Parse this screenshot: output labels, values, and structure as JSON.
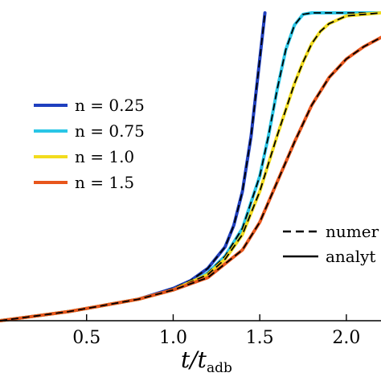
{
  "chart_data": {
    "type": "line",
    "xlabel_main": "t/t",
    "xlabel_sub": "adb",
    "xlim": [
      0.0,
      2.2
    ],
    "ylim": [
      0.0,
      1.0
    ],
    "x_ticks": [
      0.5,
      1.0,
      1.5,
      2.0
    ],
    "x_tick_labels": [
      "0.5",
      "1.0",
      "1.5",
      "2.0"
    ],
    "grid": false,
    "legend_position": "left",
    "series": [
      {
        "name": "n = 0.25",
        "color": "#1f3fbf",
        "x": [
          0.0,
          0.2,
          0.4,
          0.6,
          0.8,
          1.0,
          1.1,
          1.2,
          1.3,
          1.35,
          1.4,
          1.45,
          1.5,
          1.53
        ],
        "y": [
          0.0,
          0.015,
          0.03,
          0.05,
          0.07,
          0.105,
          0.13,
          0.17,
          0.24,
          0.31,
          0.42,
          0.6,
          0.85,
          1.0
        ]
      },
      {
        "name": "n = 0.75",
        "color": "#29c6e6",
        "x": [
          0.0,
          0.2,
          0.4,
          0.6,
          0.8,
          1.0,
          1.1,
          1.2,
          1.3,
          1.4,
          1.5,
          1.55,
          1.6,
          1.65,
          1.7,
          1.75,
          1.8,
          2.2
        ],
        "y": [
          0.0,
          0.015,
          0.03,
          0.05,
          0.07,
          0.1,
          0.12,
          0.155,
          0.21,
          0.3,
          0.47,
          0.6,
          0.75,
          0.88,
          0.96,
          0.995,
          1.0,
          1.0
        ]
      },
      {
        "name": "n = 1.0",
        "color": "#f2dc1e",
        "x": [
          0.0,
          0.2,
          0.4,
          0.6,
          0.8,
          1.0,
          1.2,
          1.3,
          1.4,
          1.5,
          1.6,
          1.7,
          1.75,
          1.8,
          1.85,
          1.9,
          2.0,
          2.2
        ],
        "y": [
          0.0,
          0.015,
          0.03,
          0.05,
          0.07,
          0.1,
          0.15,
          0.2,
          0.28,
          0.42,
          0.6,
          0.77,
          0.84,
          0.9,
          0.94,
          0.965,
          0.99,
          1.0
        ]
      },
      {
        "name": "n = 1.5",
        "color": "#e8561c",
        "x": [
          0.0,
          0.2,
          0.4,
          0.6,
          0.8,
          1.0,
          1.2,
          1.4,
          1.5,
          1.6,
          1.7,
          1.8,
          1.9,
          2.0,
          2.1,
          2.2
        ],
        "y": [
          0.0,
          0.015,
          0.03,
          0.05,
          0.07,
          0.1,
          0.14,
          0.23,
          0.32,
          0.45,
          0.58,
          0.7,
          0.79,
          0.85,
          0.89,
          0.92
        ]
      }
    ],
    "style_legend": [
      {
        "style": "dashed",
        "label": "numer"
      },
      {
        "style": "solid",
        "label": "analyt"
      }
    ]
  }
}
